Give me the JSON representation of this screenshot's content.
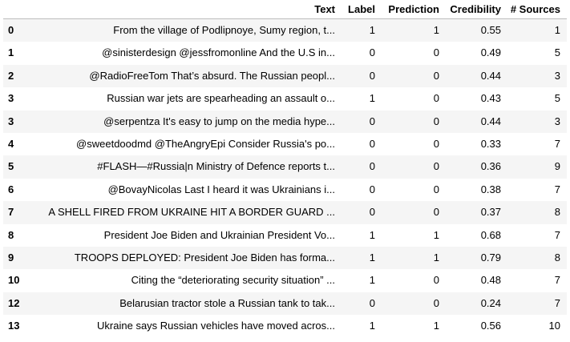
{
  "table": {
    "columns": {
      "index": "",
      "text": "Text",
      "label": "Label",
      "prediction": "Prediction",
      "credibility": "Credibility",
      "sources": "# Sources"
    },
    "rows": [
      {
        "index": "0",
        "text": "From the village of Podlipnoye, Sumy region, t...",
        "label": "1",
        "prediction": "1",
        "credibility": "0.55",
        "sources": "1"
      },
      {
        "index": "1",
        "text": "@sinisterdesign @jessfromonline And the U.S in...",
        "label": "0",
        "prediction": "0",
        "credibility": "0.49",
        "sources": "5"
      },
      {
        "index": "2",
        "text": "@RadioFreeTom That’s absurd. The Russian peopl...",
        "label": "0",
        "prediction": "0",
        "credibility": "0.44",
        "sources": "3"
      },
      {
        "index": "3",
        "text": "Russian war jets are spearheading an assault o...",
        "label": "1",
        "prediction": "0",
        "credibility": "0.43",
        "sources": "5"
      },
      {
        "index": "3",
        "text": "@serpentza It's easy to jump on the media hype...",
        "label": "0",
        "prediction": "0",
        "credibility": "0.44",
        "sources": "3"
      },
      {
        "index": "4",
        "text": "@sweetdoodmd @TheAngryEpi Consider Russia's po...",
        "label": "0",
        "prediction": "0",
        "credibility": "0.33",
        "sources": "7"
      },
      {
        "index": "5",
        "text": "#FLASH—#Russia|n Ministry of Defence reports t...",
        "label": "0",
        "prediction": "0",
        "credibility": "0.36",
        "sources": "9"
      },
      {
        "index": "6",
        "text": "@BovayNicolas Last I heard it was Ukrainians i...",
        "label": "0",
        "prediction": "0",
        "credibility": "0.38",
        "sources": "7"
      },
      {
        "index": "7",
        "text": "A SHELL FIRED FROM UKRAINE HIT A BORDER GUARD ...",
        "label": "0",
        "prediction": "0",
        "credibility": "0.37",
        "sources": "8"
      },
      {
        "index": "8",
        "text": "President Joe Biden and Ukrainian President Vo...",
        "label": "1",
        "prediction": "1",
        "credibility": "0.68",
        "sources": "7"
      },
      {
        "index": "9",
        "text": "TROOPS DEPLOYED: President Joe Biden has forma...",
        "label": "1",
        "prediction": "1",
        "credibility": "0.79",
        "sources": "8"
      },
      {
        "index": "10",
        "text": "Citing the “deteriorating security situation” ...",
        "label": "1",
        "prediction": "0",
        "credibility": "0.48",
        "sources": "7"
      },
      {
        "index": "12",
        "text": "Belarusian tractor stole a Russian tank to tak...",
        "label": "0",
        "prediction": "0",
        "credibility": "0.24",
        "sources": "7"
      },
      {
        "index": "13",
        "text": "Ukraine says Russian vehicles have moved acros...",
        "label": "1",
        "prediction": "1",
        "credibility": "0.56",
        "sources": "10"
      }
    ]
  }
}
